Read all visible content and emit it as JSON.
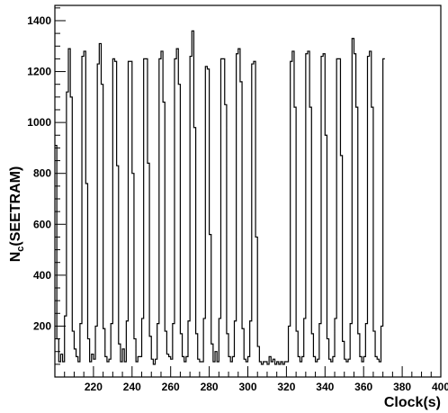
{
  "chart_data": {
    "type": "line",
    "title": "",
    "xlabel": "Clock(s)",
    "ylabel_main": "N",
    "ylabel_sub": "c",
    "ylabel_tail": "(SEETRAM)",
    "xlim": [
      200,
      400
    ],
    "ylim": [
      0,
      1460
    ],
    "x_ticks": [
      220,
      240,
      260,
      280,
      300,
      320,
      340,
      360,
      380,
      400
    ],
    "y_ticks": [
      200,
      400,
      600,
      800,
      1000,
      1200,
      1400
    ],
    "grid": false,
    "line_color": "#000000",
    "series": [
      {
        "step_width": 1,
        "x_start": 200,
        "values": [
          910,
          150,
          60,
          90,
          60,
          240,
          1120,
          1290,
          1100,
          180,
          110,
          80,
          60,
          210,
          1260,
          1280,
          760,
          150,
          60,
          90,
          70,
          200,
          1230,
          1310,
          1150,
          190,
          80,
          60,
          70,
          210,
          1250,
          1240,
          830,
          130,
          60,
          110,
          60,
          220,
          1240,
          1240,
          800,
          150,
          60,
          80,
          80,
          230,
          1250,
          1250,
          840,
          160,
          70,
          50,
          70,
          210,
          1250,
          1280,
          1080,
          180,
          90,
          80,
          70,
          210,
          1250,
          1290,
          1150,
          170,
          80,
          60,
          80,
          220,
          1260,
          1360,
          980,
          170,
          70,
          60,
          60,
          230,
          1220,
          1210,
          560,
          130,
          60,
          100,
          60,
          230,
          1250,
          1250,
          1070,
          170,
          80,
          60,
          80,
          220,
          1270,
          1290,
          1160,
          190,
          70,
          60,
          80,
          220,
          1230,
          1240,
          550,
          120,
          60,
          50,
          60,
          60,
          50,
          80,
          60,
          70,
          50,
          60,
          50,
          60,
          50,
          60,
          60,
          200,
          1240,
          1280,
          1060,
          180,
          80,
          60,
          80,
          230,
          1270,
          1280,
          1060,
          170,
          80,
          60,
          70,
          210,
          1260,
          1270,
          950,
          150,
          70,
          60,
          80,
          230,
          1250,
          1250,
          870,
          140,
          70,
          60,
          70,
          210,
          1330,
          1270,
          1060,
          170,
          80,
          60,
          80,
          210,
          1260,
          1280,
          1060,
          180,
          80,
          70,
          60,
          200,
          1250
        ]
      }
    ]
  }
}
